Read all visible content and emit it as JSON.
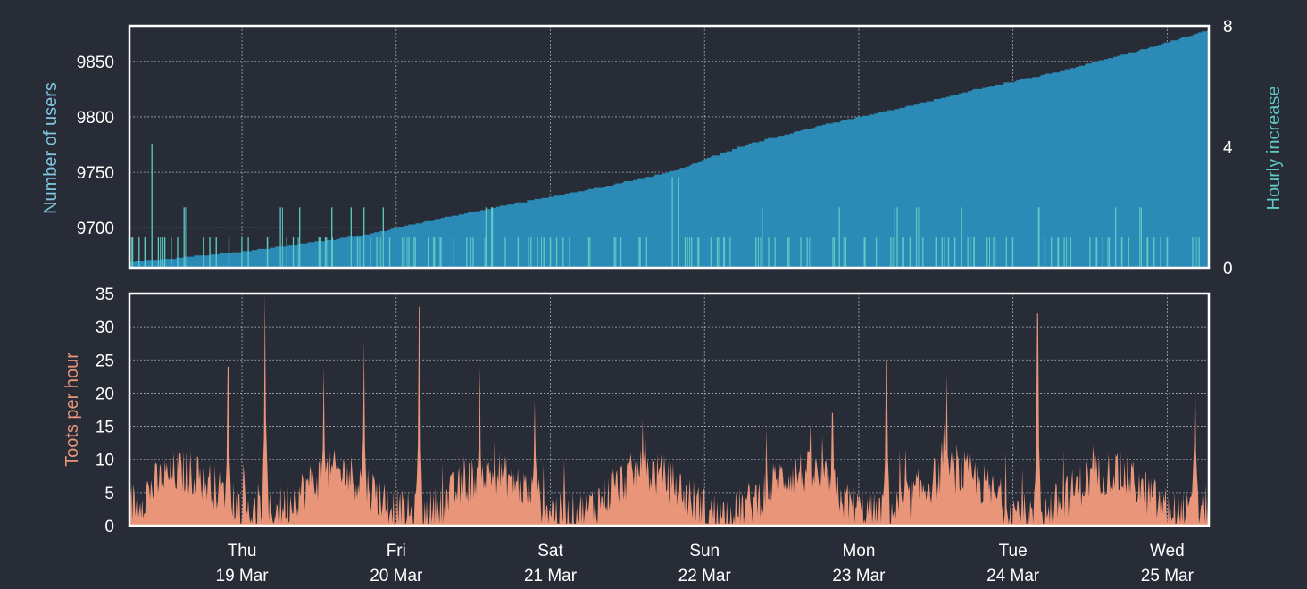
{
  "colors": {
    "background": "#282c37",
    "users_fill": "#2b8ab6",
    "hourly_increase": "#5ecac4",
    "toots": "#e8957a",
    "users_axis_label": "#7fc6e0",
    "hourly_axis_label": "#5ecac4",
    "toots_axis_label": "#e8957a",
    "frame": "#ffffff"
  },
  "chart_data": [
    {
      "type": "area",
      "panel": "users",
      "ylabel": "Number of users",
      "y2label": "Hourly increase",
      "ylim": [
        9664,
        9882
      ],
      "y2lim": [
        0,
        8
      ],
      "yticks": [
        "9700",
        "9750",
        "9800",
        "9850"
      ],
      "y2ticks": [
        "0",
        "4",
        "8"
      ],
      "x_range_days": [
        0,
        7
      ],
      "grid": true,
      "series": [
        {
          "kind": "area",
          "x_days": [
            0.0,
            0.5,
            1.0,
            1.5,
            2.0,
            2.5,
            3.0,
            3.5,
            4.0,
            4.5,
            5.0,
            5.5,
            6.0,
            6.5,
            7.0
          ],
          "values": [
            9669,
            9675,
            9683,
            9693,
            9708,
            9722,
            9735,
            9750,
            9775,
            9793,
            9808,
            9825,
            9840,
            9858,
            9878
          ]
        },
        {
          "kind": "bars",
          "note_peaks": [
            {
              "x_day": 0.13,
              "value": 4.1
            },
            {
              "x_day": 3.53,
              "value": 3.0
            },
            {
              "x_day": 3.57,
              "value": 3.0
            }
          ],
          "typical_values": [
            0,
            1,
            2
          ]
        }
      ]
    },
    {
      "type": "area",
      "panel": "toots",
      "ylabel": "Toots per hour",
      "ylim": [
        0,
        35
      ],
      "yticks": [
        "0",
        "5",
        "10",
        "15",
        "20",
        "25",
        "30",
        "35"
      ],
      "x_range_days": [
        0,
        7
      ],
      "grid": true,
      "peaks": [
        {
          "x_day": 0.64,
          "value": 24
        },
        {
          "x_day": 0.88,
          "value": 35
        },
        {
          "x_day": 1.26,
          "value": 24
        },
        {
          "x_day": 1.52,
          "value": 28
        },
        {
          "x_day": 1.88,
          "value": 33
        },
        {
          "x_day": 2.27,
          "value": 24
        },
        {
          "x_day": 2.63,
          "value": 19
        },
        {
          "x_day": 3.33,
          "value": 16
        },
        {
          "x_day": 4.56,
          "value": 17
        },
        {
          "x_day": 4.91,
          "value": 25
        },
        {
          "x_day": 5.3,
          "value": 23
        },
        {
          "x_day": 5.89,
          "value": 32
        },
        {
          "x_day": 6.91,
          "value": 25
        }
      ]
    }
  ],
  "x_axis": {
    "ticks": [
      {
        "x_day": 0.73,
        "day": "Thu",
        "date": "19 Mar"
      },
      {
        "x_day": 1.73,
        "day": "Fri",
        "date": "20 Mar"
      },
      {
        "x_day": 2.73,
        "day": "Sat",
        "date": "21 Mar"
      },
      {
        "x_day": 3.73,
        "day": "Sun",
        "date": "22 Mar"
      },
      {
        "x_day": 4.73,
        "day": "Mon",
        "date": "23 Mar"
      },
      {
        "x_day": 5.73,
        "day": "Tue",
        "date": "24 Mar"
      },
      {
        "x_day": 6.73,
        "day": "Wed",
        "date": "25 Mar"
      }
    ]
  }
}
